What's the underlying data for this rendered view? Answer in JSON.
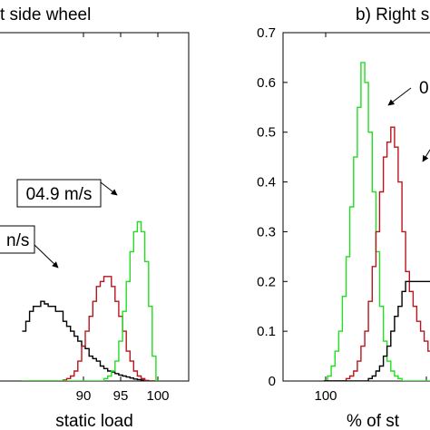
{
  "chart_data": [
    {
      "type": "line",
      "panel": "left",
      "title": "t side wheel",
      "xlabel": "static load",
      "ylabel": "",
      "xlim": [
        82,
        102
      ],
      "ylim": [
        0,
        0.7
      ],
      "grid": false,
      "xticks": [
        "90",
        "95",
        "100"
      ],
      "x": [
        82.0,
        82.5,
        83.0,
        83.5,
        84.0,
        84.5,
        85.0,
        85.5,
        86.0,
        86.5,
        87.0,
        87.5,
        88.0,
        88.5,
        89.0,
        89.5,
        90.0,
        90.5,
        91.0,
        91.5,
        92.0,
        92.5,
        93.0,
        93.5,
        94.0,
        94.5,
        95.0,
        95.5,
        96.0,
        96.5,
        97.0,
        97.5,
        98.0,
        98.5,
        99.0,
        99.5,
        100.0
      ],
      "series": [
        {
          "color": "#000000",
          "values": [
            0.1,
            0.12,
            0.14,
            0.15,
            0.15,
            0.16,
            0.155,
            0.15,
            0.15,
            0.14,
            0.14,
            0.12,
            0.11,
            0.1,
            0.09,
            0.08,
            0.07,
            0.065,
            0.05,
            0.045,
            0.04,
            0.03,
            0.025,
            0.02,
            0.018,
            0.015,
            0.012,
            0.01,
            0.008,
            0.006,
            0.004,
            0.003,
            0.002,
            0.001,
            0.0,
            0.0,
            0.0
          ]
        },
        {
          "color": "#b8161e",
          "values": [
            0.0,
            0.0,
            0.0,
            0.0,
            0.0,
            0.0,
            0.0,
            0.0,
            0.0,
            0.0,
            0.0,
            0.002,
            0.005,
            0.01,
            0.02,
            0.04,
            0.07,
            0.1,
            0.13,
            0.16,
            0.19,
            0.2,
            0.21,
            0.21,
            0.19,
            0.16,
            0.13,
            0.1,
            0.06,
            0.04,
            0.02,
            0.01,
            0.005,
            0.0,
            0.0,
            0.0,
            0.0
          ]
        },
        {
          "color": "#22dd22",
          "values": [
            0.0,
            0.0,
            0.0,
            0.0,
            0.0,
            0.0,
            0.0,
            0.0,
            0.0,
            0.0,
            0.0,
            0.0,
            0.0,
            0.0,
            0.0,
            0.0,
            0.0,
            0.0,
            0.0,
            0.0,
            0.0,
            0.0,
            0.005,
            0.01,
            0.02,
            0.04,
            0.08,
            0.14,
            0.2,
            0.26,
            0.3,
            0.32,
            0.3,
            0.24,
            0.15,
            0.05,
            0.0
          ]
        }
      ],
      "annotations": [
        {
          "text": "04.9 m/s",
          "boxed": true,
          "point_x": 97.2,
          "point_y": 0.32
        },
        {
          "text": "n/s",
          "boxed": true,
          "point_x": 93.0,
          "point_y": 0.21
        }
      ]
    },
    {
      "type": "line",
      "panel": "right",
      "title": "b) Right s",
      "xlabel": "% of st",
      "ylabel": "",
      "xlim": [
        92,
        118
      ],
      "ylim": [
        0,
        0.7
      ],
      "grid": false,
      "xticks": [
        "100"
      ],
      "yticks": [
        "0",
        "0.1",
        "0.2",
        "0.3",
        "0.4",
        "0.5",
        "0.6",
        "0.7"
      ],
      "x": [
        100.0,
        100.5,
        101.0,
        101.5,
        102.0,
        102.5,
        103.0,
        103.5,
        104.0,
        104.5,
        105.0,
        105.5,
        106.0,
        106.5,
        107.0,
        107.5,
        108.0,
        108.5,
        109.0,
        109.5,
        110.0,
        110.5,
        111.0,
        111.5,
        112.0,
        112.5,
        113.0,
        113.5,
        114.0,
        114.5,
        115.0,
        115.5,
        116.0,
        116.5,
        117.0,
        117.5,
        118.0
      ],
      "series": [
        {
          "color": "#22dd22",
          "values": [
            0.0,
            0.01,
            0.03,
            0.06,
            0.1,
            0.17,
            0.25,
            0.35,
            0.45,
            0.55,
            0.64,
            0.6,
            0.5,
            0.38,
            0.26,
            0.15,
            0.08,
            0.04,
            0.02,
            0.01,
            0.005,
            0.0,
            0.0,
            0.0,
            0.0,
            0.0,
            0.0,
            0.0,
            0.0,
            0.0,
            0.0,
            0.0,
            0.0,
            0.0,
            0.0,
            0.0,
            0.0
          ]
        },
        {
          "color": "#b8161e",
          "values": [
            0.0,
            0.0,
            0.0,
            0.0,
            0.0,
            0.0,
            0.005,
            0.01,
            0.02,
            0.04,
            0.07,
            0.1,
            0.16,
            0.23,
            0.3,
            0.38,
            0.45,
            0.48,
            0.51,
            0.47,
            0.4,
            0.3,
            0.22,
            0.18,
            0.15,
            0.12,
            0.1,
            0.08,
            0.06,
            0.04,
            0.03,
            0.02,
            0.01,
            0.005,
            0.0,
            0.0,
            0.0
          ]
        },
        {
          "color": "#000000",
          "values": [
            0.0,
            0.0,
            0.0,
            0.0,
            0.0,
            0.0,
            0.0,
            0.0,
            0.0,
            0.0,
            0.0,
            0.0,
            0.005,
            0.01,
            0.02,
            0.03,
            0.05,
            0.07,
            0.1,
            0.13,
            0.15,
            0.18,
            0.2,
            0.2,
            0.2,
            0.2,
            0.2,
            0.2,
            0.2,
            0.2,
            0.2,
            0.2,
            0.2,
            0.2,
            0.2,
            0.2,
            0.2
          ]
        }
      ],
      "annotations": [
        {
          "text": "0",
          "boxed": false,
          "point_x": 104.5,
          "point_y": 0.55
        },
        {
          "text": "",
          "boxed": false,
          "point_x": 108.7,
          "point_y": 0.43
        }
      ]
    }
  ]
}
